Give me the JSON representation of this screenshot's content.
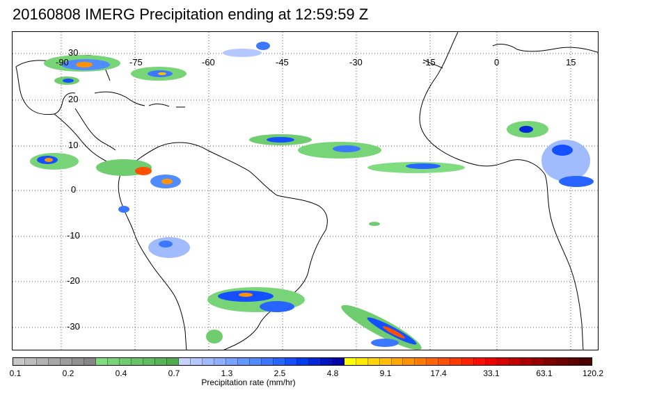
{
  "title": "20160808 IMERG Precipitation ending at 12:59:59 Z",
  "map": {
    "lon_labels": [
      "-90",
      "-75",
      "-60",
      "-45",
      "-30",
      "-15",
      "0",
      "15"
    ],
    "lat_labels": [
      "30",
      "20",
      "10",
      "0",
      "-10",
      "-20",
      "-30"
    ],
    "gridline_style": "dotted"
  },
  "colorbar": {
    "caption": "Precipitation rate (mm/hr)",
    "tick_labels": [
      "0.1",
      "0.2",
      "0.4",
      "0.7",
      "1.3",
      "2.5",
      "4.8",
      "9.1",
      "17.4",
      "33.1",
      "63.1",
      "120.2"
    ],
    "colors": [
      "#c8c8c8",
      "#bdbdbd",
      "#b2b2b2",
      "#a7a7a7",
      "#9c9c9c",
      "#919191",
      "#868686",
      "#7fdc7f",
      "#77d477",
      "#6fcc6f",
      "#67c467",
      "#5fbc5f",
      "#57b457",
      "#4fac4f",
      "#c8d2ff",
      "#b4c8ff",
      "#a0bcff",
      "#8cb0ff",
      "#78a4ff",
      "#6498ff",
      "#508cff",
      "#3c78ff",
      "#2864ff",
      "#1450ff",
      "#003cf0",
      "#0028d8",
      "#0014c0",
      "#0000a8",
      "#ffff00",
      "#ffea00",
      "#ffd400",
      "#ffbe00",
      "#ffa800",
      "#ff9200",
      "#ff7c00",
      "#ff6600",
      "#ff5000",
      "#ff3a00",
      "#ff2400",
      "#ff0e00",
      "#ee0000",
      "#d80000",
      "#c20000",
      "#ac0000",
      "#960000",
      "#800000",
      "#6e0000",
      "#5c0000",
      "#4a0000"
    ]
  }
}
